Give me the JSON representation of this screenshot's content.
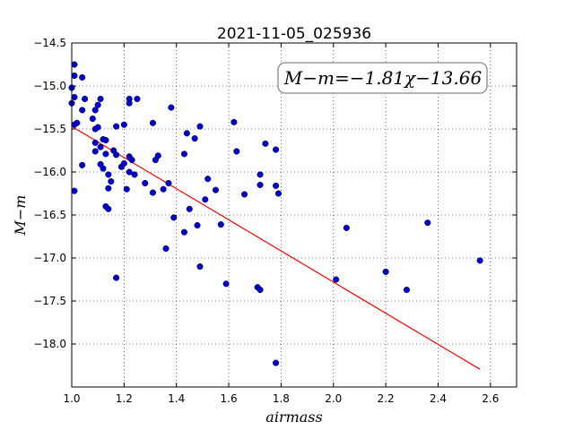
{
  "chart_data": {
    "type": "scatter",
    "title": "2021-11-05_025936",
    "xlabel": "airmass",
    "ylabel": "M−m",
    "xlim": [
      1.0,
      2.7
    ],
    "ylim": [
      -18.5,
      -14.5
    ],
    "y_inverted": true,
    "grid": true,
    "grid_style": "dotted",
    "xticks": [
      "1.0",
      "1.2",
      "1.4",
      "1.6",
      "1.8",
      "2.0",
      "2.2",
      "2.4",
      "2.6"
    ],
    "yticks": [
      "−14.5",
      "−15.0",
      "−15.5",
      "−16.0",
      "−16.5",
      "−17.0",
      "−17.5",
      "−18.0"
    ],
    "annotation": "M−m=−1.81χ−13.66",
    "fit": {
      "slope": -1.81,
      "intercept": -13.66,
      "x_range": [
        1.0,
        2.56
      ],
      "color": "#ff0000"
    },
    "point_color": "#0000cc",
    "points": [
      [
        1.0,
        -15.02
      ],
      [
        1.0,
        -15.2
      ],
      [
        1.01,
        -14.75
      ],
      [
        1.01,
        -14.88
      ],
      [
        1.01,
        -15.13
      ],
      [
        1.01,
        -15.45
      ],
      [
        1.01,
        -16.22
      ],
      [
        1.02,
        -15.43
      ],
      [
        1.04,
        -14.9
      ],
      [
        1.04,
        -15.28
      ],
      [
        1.05,
        -15.15
      ],
      [
        1.04,
        -15.92
      ],
      [
        1.08,
        -15.38
      ],
      [
        1.09,
        -15.28
      ],
      [
        1.09,
        -15.5
      ],
      [
        1.1,
        -15.48
      ],
      [
        1.1,
        -15.22
      ],
      [
        1.11,
        -15.15
      ],
      [
        1.09,
        -15.66
      ],
      [
        1.09,
        -15.76
      ],
      [
        1.11,
        -15.71
      ],
      [
        1.12,
        -15.62
      ],
      [
        1.13,
        -15.63
      ],
      [
        1.11,
        -15.91
      ],
      [
        1.12,
        -15.96
      ],
      [
        1.13,
        -15.79
      ],
      [
        1.14,
        -16.03
      ],
      [
        1.15,
        -16.11
      ],
      [
        1.14,
        -16.19
      ],
      [
        1.13,
        -16.4
      ],
      [
        1.14,
        -16.43
      ],
      [
        1.16,
        -15.75
      ],
      [
        1.17,
        -15.8
      ],
      [
        1.17,
        -15.47
      ],
      [
        1.19,
        -15.94
      ],
      [
        1.2,
        -15.45
      ],
      [
        1.2,
        -15.9
      ],
      [
        1.21,
        -16.2
      ],
      [
        1.22,
        -15.2
      ],
      [
        1.22,
        -15.15
      ],
      [
        1.22,
        -15.82
      ],
      [
        1.23,
        -15.86
      ],
      [
        1.22,
        -16.0
      ],
      [
        1.24,
        -16.03
      ],
      [
        1.25,
        -15.15
      ],
      [
        1.28,
        -16.13
      ],
      [
        1.31,
        -15.43
      ],
      [
        1.31,
        -16.24
      ],
      [
        1.32,
        -15.86
      ],
      [
        1.33,
        -15.81
      ],
      [
        1.35,
        -16.2
      ],
      [
        1.37,
        -16.13
      ],
      [
        1.38,
        -15.25
      ],
      [
        1.39,
        -16.53
      ],
      [
        1.36,
        -16.89
      ],
      [
        1.43,
        -15.79
      ],
      [
        1.44,
        -15.55
      ],
      [
        1.43,
        -16.7
      ],
      [
        1.45,
        -16.43
      ],
      [
        1.47,
        -15.61
      ],
      [
        1.49,
        -15.47
      ],
      [
        1.48,
        -16.62
      ],
      [
        1.49,
        -17.1
      ],
      [
        1.51,
        -16.32
      ],
      [
        1.52,
        -16.08
      ],
      [
        1.55,
        -16.21
      ],
      [
        1.57,
        -16.61
      ],
      [
        1.59,
        -17.3
      ],
      [
        1.62,
        -15.42
      ],
      [
        1.63,
        -15.76
      ],
      [
        1.66,
        -16.26
      ],
      [
        1.71,
        -17.34
      ],
      [
        1.72,
        -17.37
      ],
      [
        1.72,
        -16.15
      ],
      [
        1.72,
        -16.03
      ],
      [
        1.74,
        -15.67
      ],
      [
        1.78,
        -15.74
      ],
      [
        1.78,
        -16.16
      ],
      [
        1.79,
        -16.25
      ],
      [
        1.78,
        -18.22
      ],
      [
        1.17,
        -17.23
      ],
      [
        2.01,
        -17.25
      ],
      [
        2.05,
        -16.65
      ],
      [
        2.2,
        -17.16
      ],
      [
        2.28,
        -17.37
      ],
      [
        2.36,
        -16.59
      ],
      [
        2.56,
        -17.03
      ]
    ]
  }
}
